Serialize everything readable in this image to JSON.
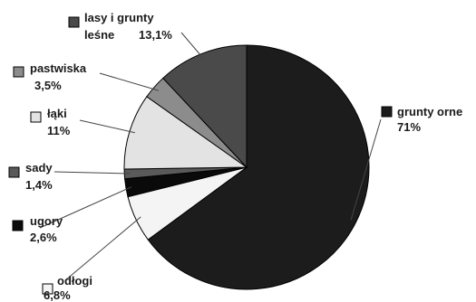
{
  "chart_data": {
    "type": "pie",
    "title": "",
    "slices": [
      {
        "label": "grunty orne",
        "value": 71,
        "value_text": "71%",
        "color": "#1c1c1c"
      },
      {
        "label": "odłogi",
        "value": 6.8,
        "value_text": "6,8%",
        "color": "#f4f4f4"
      },
      {
        "label": "ugory",
        "value": 2.6,
        "value_text": "2,6%",
        "color": "#0a0a0a"
      },
      {
        "label": "sady",
        "value": 1.4,
        "value_text": "1,4%",
        "color": "#5a5a5a"
      },
      {
        "label": "łąki",
        "value": 11,
        "value_text": "11%",
        "color": "#e3e3e3"
      },
      {
        "label": "pastwiska",
        "value": 3.5,
        "value_text": "3,5%",
        "color": "#8c8c8c"
      },
      {
        "label": "lasy i grunty leśne",
        "label_lines": [
          "lasy i grunty",
          "leśne"
        ],
        "value": 13.1,
        "value_text": "13,1%",
        "color": "#4a4a4a"
      }
    ],
    "legend": "labels-around-pie"
  }
}
